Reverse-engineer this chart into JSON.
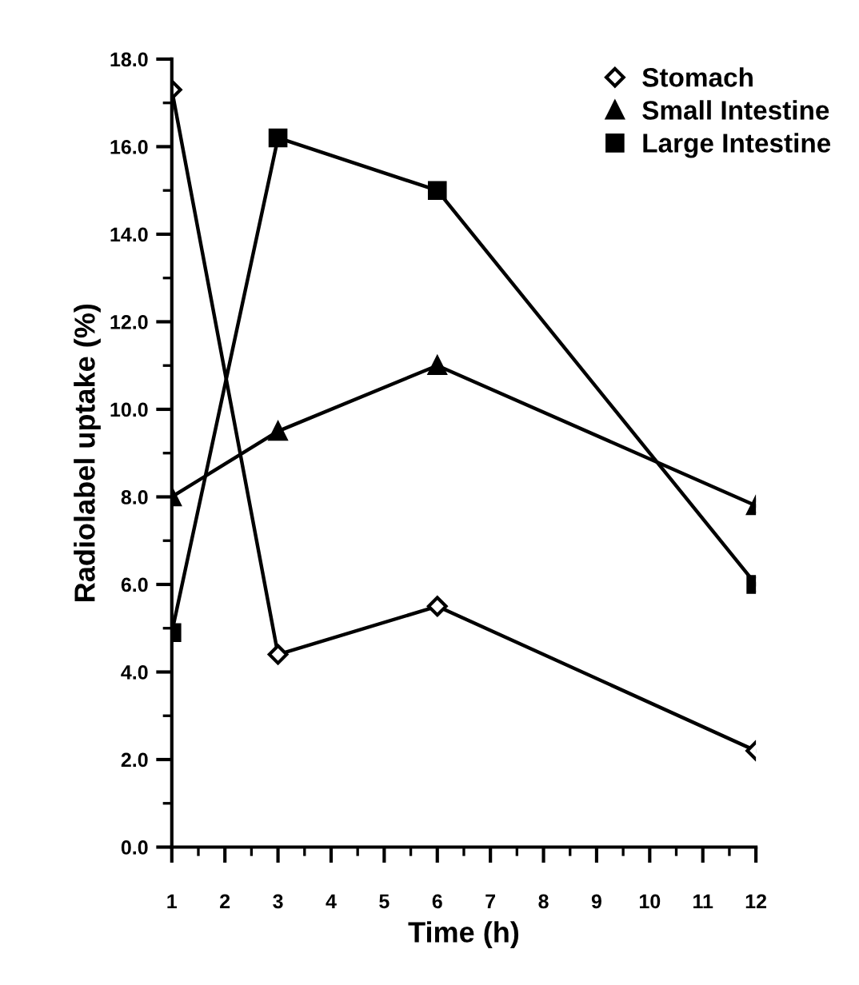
{
  "chart_data": {
    "type": "line",
    "xlabel": "Time (h)",
    "ylabel": "Radiolabel uptake (%)",
    "x": [
      1,
      3,
      6,
      12
    ],
    "series": [
      {
        "name": "Stomach",
        "color": "#000000",
        "marker": "diamond",
        "values": [
          17.3,
          4.4,
          5.5,
          2.2
        ]
      },
      {
        "name": "Small Intestine",
        "color": "#000000",
        "marker": "triangle",
        "values": [
          8.0,
          9.5,
          11.0,
          7.8
        ]
      },
      {
        "name": "Large Intestine",
        "color": "#000000",
        "marker": "square",
        "values": [
          4.9,
          16.2,
          15.0,
          6.0
        ]
      }
    ],
    "xlim": [
      1,
      12
    ],
    "xticks": [
      1,
      2,
      3,
      4,
      5,
      6,
      7,
      8,
      9,
      10,
      11,
      12
    ],
    "ylim": [
      0,
      18
    ],
    "yticks": [
      {
        "value": 0,
        "label": "0.0"
      },
      {
        "value": 2,
        "label": "2.0"
      },
      {
        "value": 4,
        "label": "4.0"
      },
      {
        "value": 6,
        "label": "6.0"
      },
      {
        "value": 8,
        "label": "8.0"
      },
      {
        "value": 10,
        "label": "10.0"
      },
      {
        "value": 12,
        "label": "12.0"
      },
      {
        "value": 14,
        "label": "14.0"
      },
      {
        "value": 16,
        "label": "16.0"
      },
      {
        "value": 18,
        "label": "18.0"
      }
    ],
    "grid": false,
    "legend": "top right",
    "line_style": "solid"
  }
}
